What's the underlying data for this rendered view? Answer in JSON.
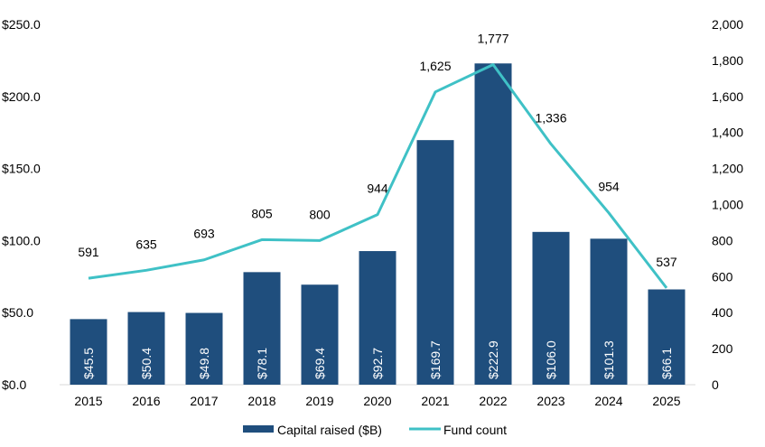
{
  "chart_data": {
    "type": "bar+line",
    "categories": [
      "2015",
      "2016",
      "2017",
      "2018",
      "2019",
      "2020",
      "2021",
      "2022",
      "2023",
      "2024",
      "2025"
    ],
    "series": [
      {
        "name": "Capital raised ($B)",
        "type": "bar",
        "axis": "left",
        "color": "#1f4e7d",
        "values": [
          45.5,
          50.4,
          49.8,
          78.1,
          69.4,
          92.7,
          169.7,
          222.9,
          106.0,
          101.3,
          66.1
        ],
        "labels": [
          "$45.5",
          "$50.4",
          "$49.8",
          "$78.1",
          "$69.4",
          "$92.7",
          "$169.7",
          "$222.9",
          "$106.0",
          "$101.3",
          "$66.1"
        ]
      },
      {
        "name": "Fund count",
        "type": "line",
        "axis": "right",
        "color": "#3fc1c6",
        "values": [
          591,
          635,
          693,
          805,
          800,
          944,
          1625,
          1777,
          1336,
          954,
          537
        ],
        "labels": [
          "591",
          "635",
          "693",
          "805",
          "800",
          "944",
          "1,625",
          "1,777",
          "1,336",
          "954",
          "537"
        ]
      }
    ],
    "y_left": {
      "range": [
        0,
        250
      ],
      "ticks": [
        "$0.0",
        "$50.0",
        "$100.0",
        "$150.0",
        "$200.0",
        "$250.0"
      ]
    },
    "y_right": {
      "range": [
        0,
        2000
      ],
      "ticks": [
        "0",
        "200",
        "400",
        "600",
        "800",
        "1,000",
        "1,200",
        "1,400",
        "1,600",
        "1,800",
        "2,000"
      ]
    },
    "grid": false,
    "legend": "bottom"
  }
}
